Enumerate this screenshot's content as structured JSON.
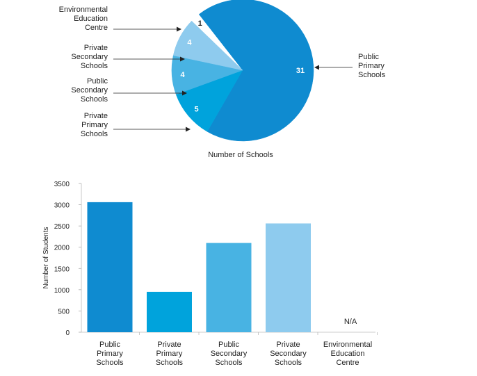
{
  "chart_data": [
    {
      "type": "pie",
      "xlabel": "Number of Schools",
      "colors": [
        "#0f8bd0",
        "#00a3dc",
        "#48b3e3",
        "#8ecbee",
        "#0f8bd0"
      ],
      "slices": [
        {
          "category": "Public Primary Schools",
          "value": 31,
          "label_lines": [
            "Public",
            "Primary",
            "Schools"
          ],
          "side": "right",
          "color": "#0f8bd0"
        },
        {
          "category": "Private Primary Schools",
          "value": 5,
          "label_lines": [
            "Private",
            "Primary",
            "Schools"
          ],
          "side": "left",
          "color": "#00a3dc"
        },
        {
          "category": "Public Secondary Schools",
          "value": 4,
          "label_lines": [
            "Public",
            "Secondary",
            "Schools"
          ],
          "side": "left",
          "color": "#48b3e3"
        },
        {
          "category": "Private Secondary Schools",
          "value": 4,
          "label_lines": [
            "Private",
            "Secondary",
            "Schools"
          ],
          "side": "left",
          "color": "#8ecbee"
        },
        {
          "category": "Environmental Education Centre",
          "value": 1,
          "label_lines": [
            "Environmental",
            "Education",
            "Centre"
          ],
          "side": "left",
          "color": "#ffffff",
          "exploded": true
        }
      ]
    },
    {
      "type": "bar",
      "ylabel": "Number of Students",
      "ylim": [
        0,
        3500
      ],
      "yticks": [
        0,
        500,
        1000,
        1500,
        2000,
        2500,
        3000,
        3500
      ],
      "categories": [
        {
          "lines": [
            "Public",
            "Primary",
            "Schools"
          ],
          "value": 3060,
          "color": "#0f8bd0"
        },
        {
          "lines": [
            "Private",
            "Primary",
            "Schools"
          ],
          "value": 950,
          "color": "#00a3dc"
        },
        {
          "lines": [
            "Public",
            "Secondary",
            "Schools"
          ],
          "value": 2100,
          "color": "#48b3e3"
        },
        {
          "lines": [
            "Private",
            "Secondary",
            "Schools"
          ],
          "value": 2560,
          "color": "#8ecbee"
        },
        {
          "lines": [
            "Environmental",
            "Education",
            "Centre"
          ],
          "value": null,
          "na_label": "N/A",
          "color": "#8ecbee"
        }
      ]
    }
  ]
}
